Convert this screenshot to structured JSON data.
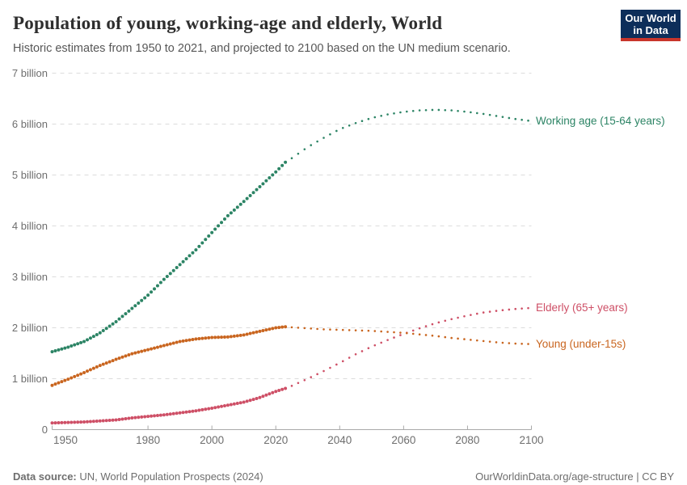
{
  "header": {
    "title": "Population of young, working-age and elderly, World",
    "subtitle": "Historic estimates from 1950 to 2021, and projected to 2100 based on the UN medium scenario.",
    "logo": {
      "line1": "Our World",
      "line2": "in Data",
      "bg_color": "#0D2E5A",
      "bar_color": "#C8352B"
    }
  },
  "footer": {
    "source_label": "Data source:",
    "source_text": " UN, World Population Prospects (2024)",
    "rights": "OurWorldinData.org/age-structure | CC BY"
  },
  "chart_data": {
    "type": "line",
    "title": "Population of young, working-age and elderly, World",
    "subtitle": "Historic estimates from 1950 to 2021, and projected to 2100 based on the UN medium scenario.",
    "unit": "people",
    "grid": true,
    "legend_position": "labels-at-line-ends-right",
    "projection_start_year": 2023,
    "x_axis": {
      "range": [
        1950,
        2100
      ],
      "ticks": [
        1950,
        1980,
        2000,
        2020,
        2040,
        2060,
        2080,
        2100
      ]
    },
    "y_axis": {
      "range_billions": [
        0,
        7
      ],
      "ticks": [
        {
          "value": 0,
          "label": "0"
        },
        {
          "value": 1,
          "label": "1 billion"
        },
        {
          "value": 2,
          "label": "2 billion"
        },
        {
          "value": 3,
          "label": "3 billion"
        },
        {
          "value": 4,
          "label": "4 billion"
        },
        {
          "value": 5,
          "label": "5 billion"
        },
        {
          "value": 6,
          "label": "6 billion"
        },
        {
          "value": 7,
          "label": "7 billion"
        }
      ]
    },
    "series": [
      {
        "id": "working-age",
        "label": "Working age (15-64 years)",
        "color": "#2C8465",
        "historic_billions": [
          [
            1950,
            1.53
          ],
          [
            1955,
            1.62
          ],
          [
            1960,
            1.73
          ],
          [
            1965,
            1.9
          ],
          [
            1970,
            2.12
          ],
          [
            1975,
            2.38
          ],
          [
            1980,
            2.64
          ],
          [
            1985,
            2.95
          ],
          [
            1990,
            3.24
          ],
          [
            1995,
            3.53
          ],
          [
            2000,
            3.87
          ],
          [
            2005,
            4.2
          ],
          [
            2010,
            4.48
          ],
          [
            2015,
            4.77
          ],
          [
            2020,
            5.06
          ],
          [
            2023,
            5.25
          ]
        ],
        "projection_billions": [
          [
            2023,
            5.25
          ],
          [
            2025,
            5.33
          ],
          [
            2030,
            5.55
          ],
          [
            2035,
            5.73
          ],
          [
            2040,
            5.9
          ],
          [
            2045,
            6.02
          ],
          [
            2050,
            6.12
          ],
          [
            2055,
            6.19
          ],
          [
            2060,
            6.24
          ],
          [
            2065,
            6.27
          ],
          [
            2070,
            6.28
          ],
          [
            2075,
            6.27
          ],
          [
            2080,
            6.24
          ],
          [
            2085,
            6.2
          ],
          [
            2090,
            6.15
          ],
          [
            2095,
            6.1
          ],
          [
            2100,
            6.06
          ]
        ]
      },
      {
        "id": "elderly",
        "label": "Elderly (65+ years)",
        "color": "#CE4F66",
        "historic_billions": [
          [
            1950,
            0.13
          ],
          [
            1955,
            0.14
          ],
          [
            1960,
            0.15
          ],
          [
            1965,
            0.17
          ],
          [
            1970,
            0.19
          ],
          [
            1975,
            0.23
          ],
          [
            1980,
            0.26
          ],
          [
            1985,
            0.29
          ],
          [
            1990,
            0.33
          ],
          [
            1995,
            0.37
          ],
          [
            2000,
            0.42
          ],
          [
            2005,
            0.48
          ],
          [
            2010,
            0.54
          ],
          [
            2015,
            0.63
          ],
          [
            2020,
            0.75
          ],
          [
            2023,
            0.81
          ]
        ],
        "projection_billions": [
          [
            2023,
            0.81
          ],
          [
            2025,
            0.86
          ],
          [
            2030,
            1.0
          ],
          [
            2035,
            1.15
          ],
          [
            2040,
            1.31
          ],
          [
            2045,
            1.48
          ],
          [
            2050,
            1.63
          ],
          [
            2055,
            1.76
          ],
          [
            2060,
            1.88
          ],
          [
            2065,
            1.99
          ],
          [
            2070,
            2.09
          ],
          [
            2075,
            2.17
          ],
          [
            2080,
            2.24
          ],
          [
            2085,
            2.3
          ],
          [
            2090,
            2.34
          ],
          [
            2095,
            2.37
          ],
          [
            2100,
            2.39
          ]
        ]
      },
      {
        "id": "young",
        "label": "Young (under-15s)",
        "color": "#C9651F",
        "historic_billions": [
          [
            1950,
            0.87
          ],
          [
            1955,
            0.99
          ],
          [
            1960,
            1.12
          ],
          [
            1965,
            1.26
          ],
          [
            1970,
            1.38
          ],
          [
            1975,
            1.49
          ],
          [
            1980,
            1.57
          ],
          [
            1985,
            1.65
          ],
          [
            1990,
            1.73
          ],
          [
            1995,
            1.78
          ],
          [
            2000,
            1.81
          ],
          [
            2005,
            1.82
          ],
          [
            2010,
            1.86
          ],
          [
            2015,
            1.93
          ],
          [
            2020,
            2.0
          ],
          [
            2023,
            2.02
          ]
        ],
        "projection_billions": [
          [
            2023,
            2.02
          ],
          [
            2025,
            2.01
          ],
          [
            2030,
            1.99
          ],
          [
            2035,
            1.97
          ],
          [
            2040,
            1.96
          ],
          [
            2045,
            1.95
          ],
          [
            2050,
            1.94
          ],
          [
            2055,
            1.92
          ],
          [
            2060,
            1.9
          ],
          [
            2065,
            1.87
          ],
          [
            2070,
            1.84
          ],
          [
            2075,
            1.8
          ],
          [
            2080,
            1.77
          ],
          [
            2085,
            1.74
          ],
          [
            2090,
            1.71
          ],
          [
            2095,
            1.69
          ],
          [
            2100,
            1.68
          ]
        ]
      }
    ]
  }
}
